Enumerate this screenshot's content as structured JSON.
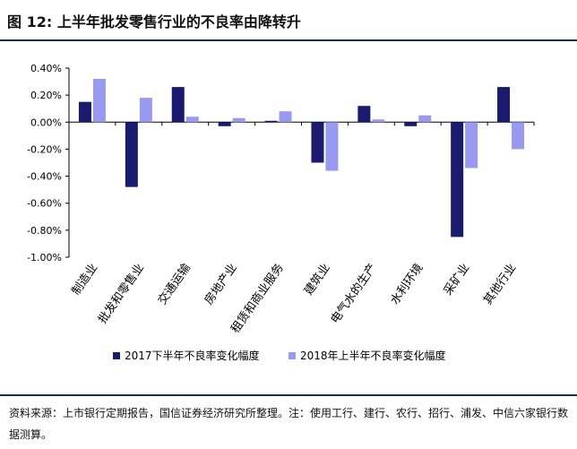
{
  "header": {
    "figure_label": "图 12:",
    "title": "上半年批发零售行业的不良率由降转升"
  },
  "chart_data": {
    "type": "bar",
    "categories": [
      "制造业",
      "批发和零售业",
      "交通运输",
      "房地产业",
      "租赁和商业服务",
      "建筑业",
      "电气水的生产",
      "水利环境",
      "采矿业",
      "其他行业"
    ],
    "series": [
      {
        "name": "2017下半年不良率变化幅度",
        "color": "#1a1a6e",
        "values": [
          0.15,
          -0.48,
          0.26,
          -0.03,
          0.01,
          -0.3,
          0.12,
          -0.03,
          -0.85,
          0.26
        ]
      },
      {
        "name": "2018年上半年不良率变化幅度",
        "color": "#9999f0",
        "values": [
          0.32,
          0.18,
          0.04,
          0.03,
          0.08,
          -0.36,
          0.02,
          0.05,
          -0.34,
          -0.2
        ]
      }
    ],
    "ylim": [
      -1.0,
      0.4
    ],
    "yticks": [
      0.4,
      0.2,
      0.0,
      -0.2,
      -0.4,
      -0.6,
      -0.8,
      -1.0
    ],
    "ytick_labels": [
      "0.40%",
      "0.20%",
      "0.00%",
      "-0.20%",
      "-0.40%",
      "-0.60%",
      "-0.80%",
      "-1.00%"
    ],
    "legend_position": "bottom",
    "grid": false
  },
  "footer": {
    "source": "资料来源：上市银行定期报告，国信证券经济研究所整理。注：使用工行、建行、农行、招行、浦发、中信六家银行数据测算。"
  }
}
